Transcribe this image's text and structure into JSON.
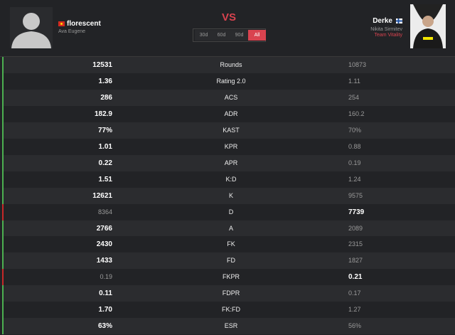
{
  "header": {
    "left_player": {
      "name": "florescent",
      "real_name": "Ava Eugene"
    },
    "vs": "VS",
    "periods": [
      "30d",
      "60d",
      "90d",
      "All"
    ],
    "active_period": 3,
    "right_player": {
      "name": "Derke",
      "real_name": "Nikita Sirmitev",
      "team": "Team Vitality"
    }
  },
  "table": {
    "rows": [
      {
        "left": "12531",
        "stat": "Rounds",
        "right": "10873",
        "winner": "left"
      },
      {
        "left": "1.36",
        "stat": "Rating 2.0",
        "right": "1.11",
        "winner": "left"
      },
      {
        "left": "286",
        "stat": "ACS",
        "right": "254",
        "winner": "left"
      },
      {
        "left": "182.9",
        "stat": "ADR",
        "right": "160.2",
        "winner": "left"
      },
      {
        "left": "77%",
        "stat": "KAST",
        "right": "70%",
        "winner": "left"
      },
      {
        "left": "1.01",
        "stat": "KPR",
        "right": "0.88",
        "winner": "left"
      },
      {
        "left": "0.22",
        "stat": "APR",
        "right": "0.19",
        "winner": "left"
      },
      {
        "left": "1.51",
        "stat": "K:D",
        "right": "1.24",
        "winner": "left"
      },
      {
        "left": "12621",
        "stat": "K",
        "right": "9575",
        "winner": "left"
      },
      {
        "left": "8364",
        "stat": "D",
        "right": "7739",
        "winner": "right"
      },
      {
        "left": "2766",
        "stat": "A",
        "right": "2089",
        "winner": "left"
      },
      {
        "left": "2430",
        "stat": "FK",
        "right": "2315",
        "winner": "left"
      },
      {
        "left": "1433",
        "stat": "FD",
        "right": "1827",
        "winner": "left"
      },
      {
        "left": "0.19",
        "stat": "FKPR",
        "right": "0.21",
        "winner": "right"
      },
      {
        "left": "0.11",
        "stat": "FDPR",
        "right": "0.17",
        "winner": "left"
      },
      {
        "left": "1.70",
        "stat": "FK:FD",
        "right": "1.27",
        "winner": "left"
      },
      {
        "left": "63%",
        "stat": "ESR",
        "right": "56%",
        "winner": "left"
      }
    ]
  }
}
